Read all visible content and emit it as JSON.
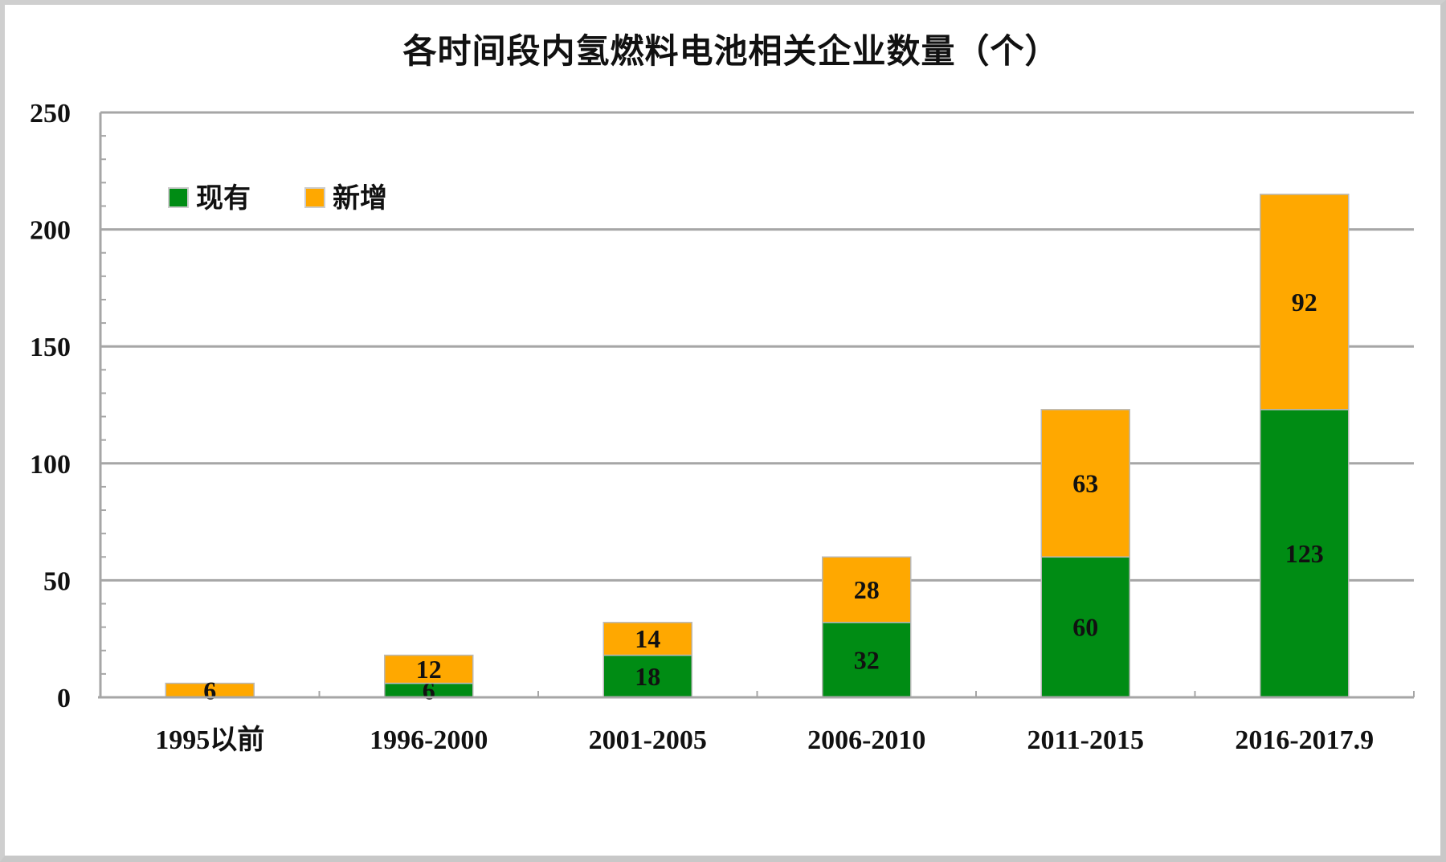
{
  "title": "各时间段内氢燃料电池相关企业数量（个）",
  "legend": [
    {
      "label": "现有",
      "color": "#008C14"
    },
    {
      "label": "新增",
      "color": "#FFA800"
    }
  ],
  "chart_data": {
    "type": "bar",
    "stacked": true,
    "title": "各时间段内氢燃料电池相关企业数量（个）",
    "xlabel": "",
    "ylabel": "",
    "ylim": [
      0,
      250
    ],
    "yticks": [
      0,
      50,
      100,
      150,
      200,
      250
    ],
    "grid": true,
    "legend_position": "upper-left",
    "categories": [
      "1995以前",
      "1996-2000",
      "2001-2005",
      "2006-2010",
      "2011-2015",
      "2016-2017.9"
    ],
    "series": [
      {
        "name": "现有",
        "color": "#008C14",
        "values": [
          0,
          6,
          18,
          32,
          60,
          123
        ]
      },
      {
        "name": "新增",
        "color": "#FFA800",
        "values": [
          6,
          12,
          14,
          28,
          63,
          92
        ]
      }
    ],
    "data_labels": true
  }
}
